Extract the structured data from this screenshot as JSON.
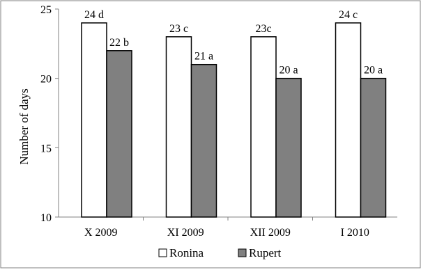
{
  "chart_data": {
    "type": "bar",
    "title": "",
    "xlabel": "",
    "ylabel": "Number of days",
    "ylim": [
      10,
      25
    ],
    "yticks": [
      10,
      15,
      20,
      25
    ],
    "grid": false,
    "legend_position": "bottom",
    "categories": [
      "X 2009",
      "XI 2009",
      "XII 2009",
      "I 2010"
    ],
    "series": [
      {
        "name": "Ronina",
        "color": "#ffffff",
        "values": [
          24,
          23,
          23,
          24
        ],
        "labels": [
          "24 d",
          "23 c",
          "23c",
          "24 c"
        ]
      },
      {
        "name": "Rupert",
        "color": "#808080",
        "values": [
          22,
          21,
          20,
          20
        ],
        "labels": [
          "22 b",
          "21 a",
          "20 a",
          "20 a"
        ]
      }
    ]
  }
}
